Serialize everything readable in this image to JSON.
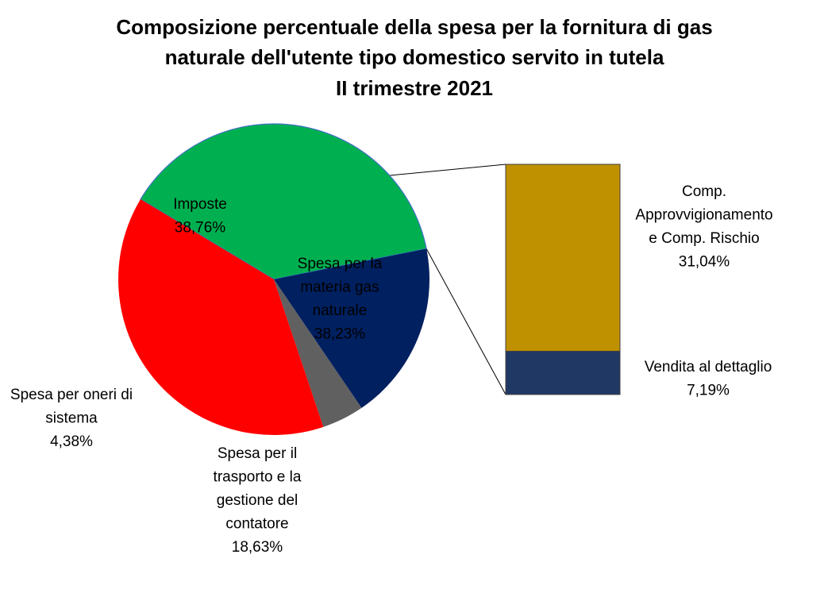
{
  "chart_data": {
    "type": "pie",
    "title_lines": [
      "Composizione percentuale della spesa per la fornitura di gas",
      "naturale dell'utente tipo domestico servito in tutela",
      "II trimestre 2021"
    ],
    "slices": [
      {
        "label_lines": [
          "Spesa per la",
          "materia gas",
          "naturale"
        ],
        "value": 38.23,
        "value_label": "38,23%",
        "color": "#00b050"
      },
      {
        "label_lines": [
          "Spesa per il",
          "trasporto e la",
          "gestione del",
          "contatore"
        ],
        "value": 18.63,
        "value_label": "18,63%",
        "color": "#002060"
      },
      {
        "label_lines": [
          "Spesa per oneri di",
          "sistema"
        ],
        "value": 4.38,
        "value_label": "4,38%",
        "color": "#606060"
      },
      {
        "label_lines": [
          "Imposte"
        ],
        "value": 38.76,
        "value_label": "38,76%",
        "color": "#ff0000"
      }
    ],
    "breakdown": {
      "of_slice": "Spesa per la materia gas naturale",
      "segments": [
        {
          "label_lines": [
            "Comp.",
            "Approvvigionamento",
            "e  Comp. Rischio"
          ],
          "value": 31.04,
          "value_label": "31,04%",
          "color": "#bf9000"
        },
        {
          "label_lines": [
            "Vendita al dettaglio"
          ],
          "value": 7.19,
          "value_label": "7,19%",
          "color": "#203864"
        }
      ]
    }
  }
}
